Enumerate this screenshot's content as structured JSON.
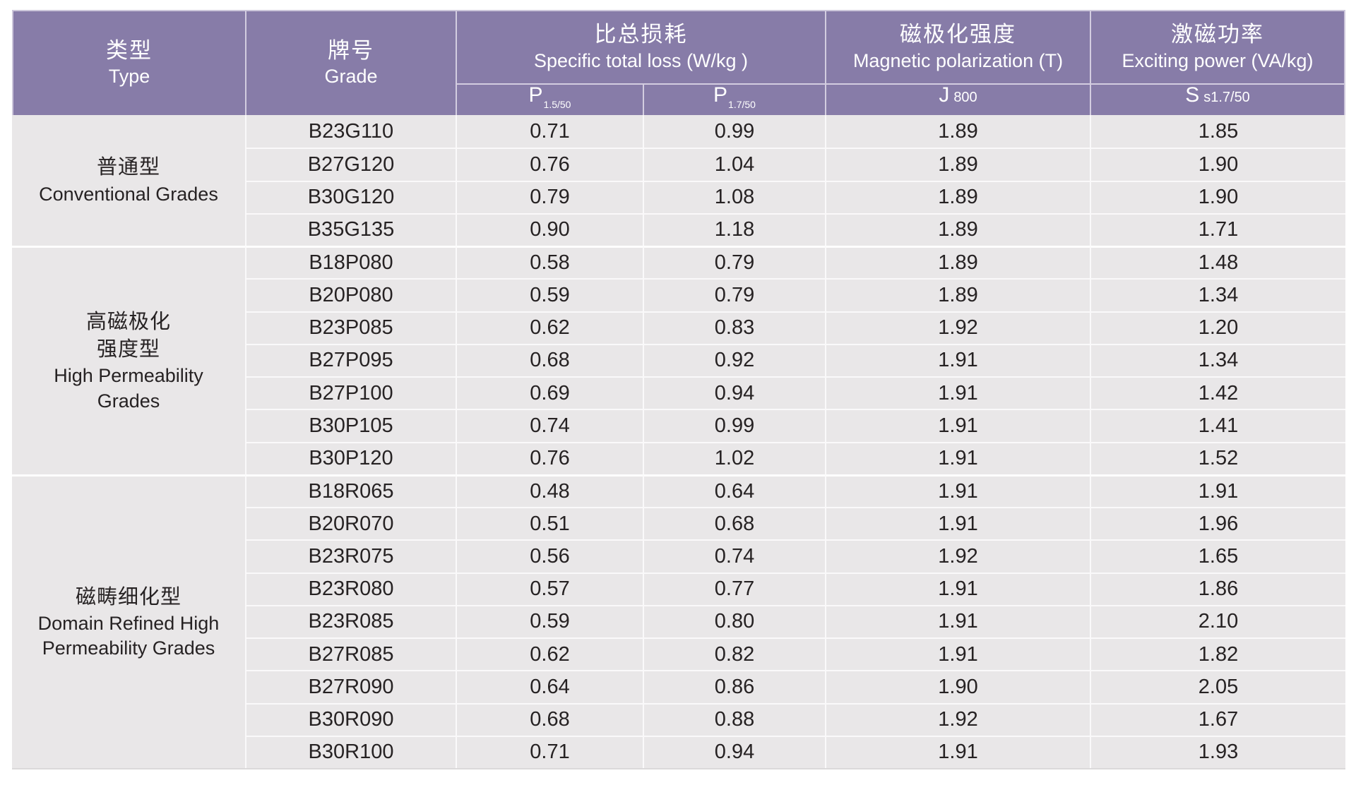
{
  "table": {
    "columns": {
      "type": {
        "zh": "类型",
        "en": "Type"
      },
      "grade": {
        "zh": "牌号",
        "en": "Grade"
      },
      "loss": {
        "zh": "比总损耗",
        "en": "Specific total loss (W/kg )"
      },
      "polarization": {
        "zh": "磁极化强度",
        "en": "Magnetic polarization (T)"
      },
      "power": {
        "zh": "激磁功率",
        "en": "Exciting power (VA/kg)"
      }
    },
    "subheaders": {
      "p1550": {
        "main": "P",
        "sub": "1.5/50"
      },
      "p1750": {
        "main": "P",
        "sub": "1.7/50"
      },
      "j800": {
        "main": "J",
        "small": "800"
      },
      "ss1750": {
        "main": "S",
        "small": "s1.7/50"
      }
    },
    "groups": [
      {
        "type_zh": "普通型",
        "type_en": "Conventional Grades",
        "rows": [
          {
            "grade": "B23G110",
            "p1550": "0.71",
            "p1750": "0.99",
            "j800": "1.89",
            "ss1750": "1.85"
          },
          {
            "grade": "B27G120",
            "p1550": "0.76",
            "p1750": "1.04",
            "j800": "1.89",
            "ss1750": "1.90"
          },
          {
            "grade": "B30G120",
            "p1550": "0.79",
            "p1750": "1.08",
            "j800": "1.89",
            "ss1750": "1.90"
          },
          {
            "grade": "B35G135",
            "p1550": "0.90",
            "p1750": "1.18",
            "j800": "1.89",
            "ss1750": "1.71"
          }
        ]
      },
      {
        "type_zh": "高磁极化\n强度型",
        "type_en": "High Permeability\nGrades",
        "rows": [
          {
            "grade": "B18P080",
            "p1550": "0.58",
            "p1750": "0.79",
            "j800": "1.89",
            "ss1750": "1.48"
          },
          {
            "grade": "B20P080",
            "p1550": "0.59",
            "p1750": "0.79",
            "j800": "1.89",
            "ss1750": "1.34"
          },
          {
            "grade": "B23P085",
            "p1550": "0.62",
            "p1750": "0.83",
            "j800": "1.92",
            "ss1750": "1.20"
          },
          {
            "grade": "B27P095",
            "p1550": "0.68",
            "p1750": "0.92",
            "j800": "1.91",
            "ss1750": "1.34"
          },
          {
            "grade": "B27P100",
            "p1550": "0.69",
            "p1750": "0.94",
            "j800": "1.91",
            "ss1750": "1.42"
          },
          {
            "grade": "B30P105",
            "p1550": "0.74",
            "p1750": "0.99",
            "j800": "1.91",
            "ss1750": "1.41"
          },
          {
            "grade": "B30P120",
            "p1550": "0.76",
            "p1750": "1.02",
            "j800": "1.91",
            "ss1750": "1.52"
          }
        ]
      },
      {
        "type_zh": "磁畴细化型",
        "type_en": "Domain Refined High\nPermeability Grades",
        "rows": [
          {
            "grade": "B18R065",
            "p1550": "0.48",
            "p1750": "0.64",
            "j800": "1.91",
            "ss1750": "1.91"
          },
          {
            "grade": "B20R070",
            "p1550": "0.51",
            "p1750": "0.68",
            "j800": "1.91",
            "ss1750": "1.96"
          },
          {
            "grade": "B23R075",
            "p1550": "0.56",
            "p1750": "0.74",
            "j800": "1.92",
            "ss1750": "1.65"
          },
          {
            "grade": "B23R080",
            "p1550": "0.57",
            "p1750": "0.77",
            "j800": "1.91",
            "ss1750": "1.86"
          },
          {
            "grade": "B23R085",
            "p1550": "0.59",
            "p1750": "0.80",
            "j800": "1.91",
            "ss1750": "2.10"
          },
          {
            "grade": "B27R085",
            "p1550": "0.62",
            "p1750": "0.82",
            "j800": "1.91",
            "ss1750": "1.82"
          },
          {
            "grade": "B27R090",
            "p1550": "0.64",
            "p1750": "0.86",
            "j800": "1.90",
            "ss1750": "2.05"
          },
          {
            "grade": "B30R090",
            "p1550": "0.68",
            "p1750": "0.88",
            "j800": "1.92",
            "ss1750": "1.67"
          },
          {
            "grade": "B30R100",
            "p1550": "0.71",
            "p1750": "0.94",
            "j800": "1.91",
            "ss1750": "1.93"
          }
        ]
      }
    ]
  },
  "colors": {
    "header_purple": "#877CA8",
    "header_divider": "#D3CDE0",
    "body_bg": "#E9E7E8",
    "row_separator": "#FAF9FA",
    "text": "#262223",
    "header_text": "#FFFFFF"
  }
}
